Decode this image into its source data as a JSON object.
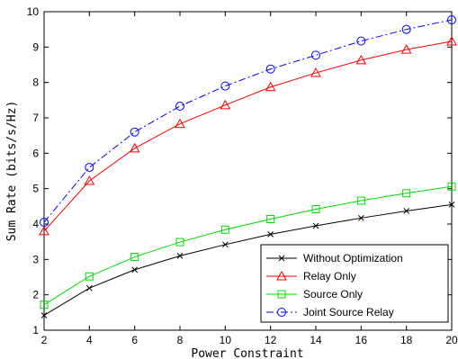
{
  "chart_data": {
    "type": "line",
    "xlabel": "Power Constraint",
    "ylabel": "Sum Rate (bits/s/Hz)",
    "xlim": [
      2,
      20
    ],
    "ylim": [
      1,
      10
    ],
    "xticks": [
      2,
      4,
      6,
      8,
      10,
      12,
      14,
      16,
      18,
      20
    ],
    "yticks": [
      1,
      2,
      3,
      4,
      5,
      6,
      7,
      8,
      9,
      10
    ],
    "grid": false,
    "legend_position": "bottom-right",
    "x": [
      2,
      4,
      6,
      8,
      10,
      12,
      14,
      16,
      18,
      20
    ],
    "series": [
      {
        "name": "Without Optimization",
        "values": [
          1.42,
          2.19,
          2.71,
          3.1,
          3.42,
          3.71,
          3.95,
          4.17,
          4.37,
          4.55
        ],
        "color": "#000000",
        "line_style": "solid",
        "marker": "x"
      },
      {
        "name": "Relay Only",
        "values": [
          3.8,
          5.22,
          6.14,
          6.83,
          7.36,
          7.87,
          8.27,
          8.63,
          8.93,
          9.16
        ],
        "color": "#ff0000",
        "line_style": "solid",
        "marker": "triangle"
      },
      {
        "name": "Source Only",
        "values": [
          1.72,
          2.52,
          3.07,
          3.49,
          3.84,
          4.14,
          4.42,
          4.66,
          4.87,
          5.06
        ],
        "color": "#00dd00",
        "line_style": "solid",
        "marker": "square"
      },
      {
        "name": "Joint Source Relay",
        "values": [
          4.05,
          5.6,
          6.6,
          7.33,
          7.9,
          8.38,
          8.77,
          9.17,
          9.5,
          9.77
        ],
        "color": "#0000ff",
        "line_style": "dashdot",
        "marker": "circle"
      }
    ]
  }
}
